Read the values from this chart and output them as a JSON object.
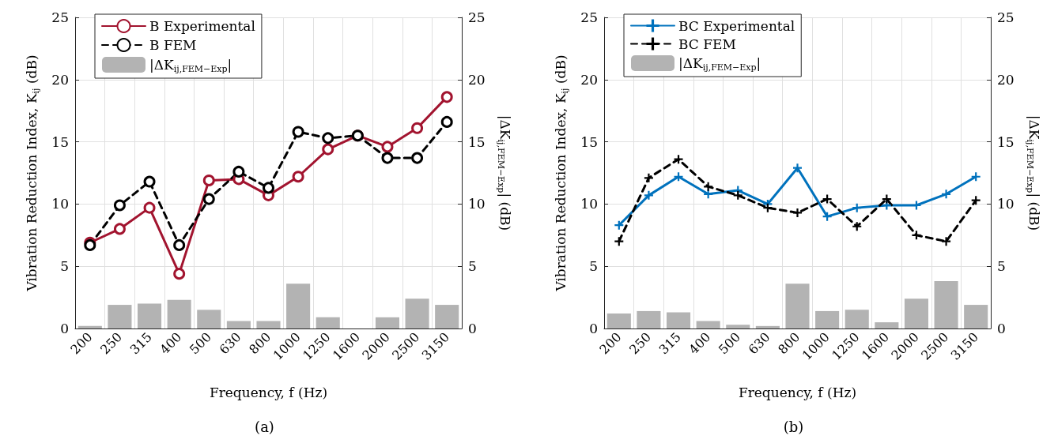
{
  "chart_data": [
    {
      "type": "line",
      "categories": [
        "200",
        "250",
        "315",
        "400",
        "500",
        "630",
        "800",
        "1000",
        "1250",
        "1600",
        "2000",
        "2500",
        "3150"
      ],
      "xlabel": "Frequency, f (Hz)",
      "ylabel": "Vibration Reduction Index, K$_{ij}$ (dB)",
      "y2label": "|ΔK$_{ij,FEM−Exp}$| (dB)",
      "ylim": [
        0,
        25
      ],
      "yticks": [
        0,
        5,
        10,
        15,
        20,
        25
      ],
      "y2lim": [
        0,
        25
      ],
      "y2ticks": [
        0,
        5,
        10,
        15,
        20,
        25
      ],
      "grid": true,
      "legend": "top left",
      "marker": "circle",
      "annotations": [
        "(a)"
      ],
      "series": [
        {
          "name": "B Experimental",
          "color": "#a2142f",
          "line_style": "solid",
          "values": [
            6.9,
            8.0,
            9.7,
            4.4,
            11.9,
            12.0,
            10.7,
            12.2,
            14.4,
            15.5,
            14.6,
            16.1,
            18.6
          ]
        },
        {
          "name": "B FEM",
          "color": "#000000",
          "line_style": "dashed",
          "values": [
            6.7,
            9.9,
            11.8,
            6.7,
            10.4,
            12.6,
            11.3,
            15.8,
            15.3,
            15.5,
            13.7,
            13.7,
            16.6
          ]
        },
        {
          "name": "|ΔK$_{ij,FEM−Exp}$|",
          "type": "bar",
          "axis": "y2",
          "color": "#b3b3b3",
          "values": [
            0.2,
            1.9,
            2.0,
            2.3,
            1.5,
            0.6,
            0.6,
            3.6,
            0.9,
            0.0,
            0.9,
            2.4,
            1.9
          ]
        }
      ]
    },
    {
      "type": "line",
      "categories": [
        "200",
        "250",
        "315",
        "400",
        "500",
        "630",
        "800",
        "1000",
        "1250",
        "1600",
        "2000",
        "2500",
        "3150"
      ],
      "xlabel": "Frequency, f (Hz)",
      "ylabel": "Vibration Reduction Index, K$_{ij}$ (dB)",
      "y2label": "|ΔK$_{ij,FEM−Exp}$| (dB)",
      "ylim": [
        0,
        25
      ],
      "yticks": [
        0,
        5,
        10,
        15,
        20,
        25
      ],
      "y2lim": [
        0,
        25
      ],
      "y2ticks": [
        0,
        5,
        10,
        15,
        20,
        25
      ],
      "grid": true,
      "legend": "top left",
      "marker": "cross",
      "annotations": [
        "(b)"
      ],
      "series": [
        {
          "name": "BC Experimental",
          "color": "#0072bd",
          "line_style": "solid",
          "values": [
            8.3,
            10.7,
            12.2,
            10.8,
            11.1,
            10.0,
            12.9,
            9.0,
            9.7,
            9.9,
            9.9,
            10.8,
            12.2
          ]
        },
        {
          "name": "BC FEM",
          "color": "#000000",
          "line_style": "dashed",
          "values": [
            7.0,
            12.1,
            13.6,
            11.4,
            10.7,
            9.7,
            9.3,
            10.4,
            8.2,
            10.4,
            7.5,
            7.0,
            10.3
          ]
        },
        {
          "name": "|ΔK$_{ij,FEM−Exp}$|",
          "type": "bar",
          "axis": "y2",
          "color": "#b3b3b3",
          "values": [
            1.2,
            1.4,
            1.3,
            0.6,
            0.3,
            0.2,
            3.6,
            1.4,
            1.5,
            0.5,
            2.4,
            3.8,
            1.9
          ]
        }
      ]
    }
  ]
}
